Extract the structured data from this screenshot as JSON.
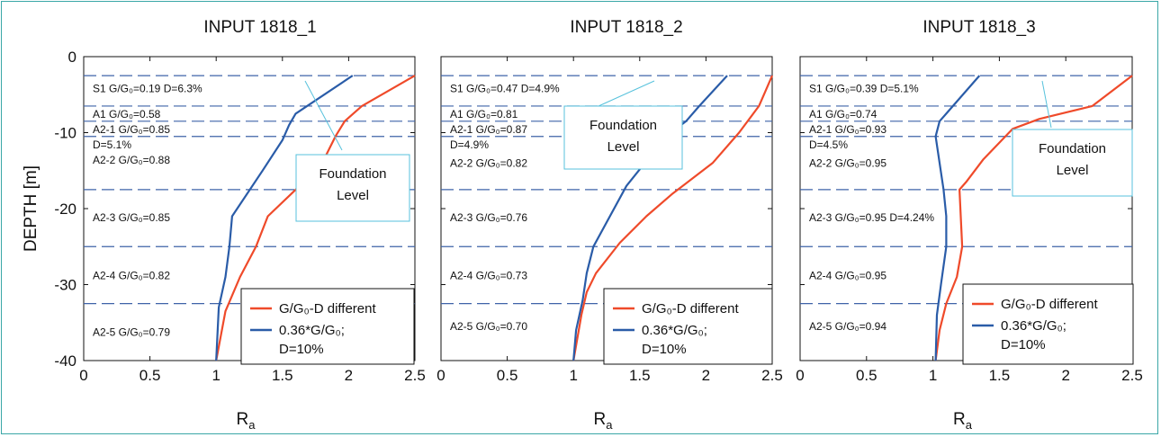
{
  "figure": {
    "ylabel": "DEPTH [m]",
    "xlabel": "R",
    "xlabel_sub": "a"
  },
  "colors": {
    "red_series": "#ef4a2a",
    "blue_series": "#2a5ca8",
    "layer_lines": "#3f63a8",
    "callout_border": "#57c2dc",
    "frame": "#3aa7a7"
  },
  "chart_data": [
    {
      "type": "line",
      "title": "INPUT 1818_1",
      "xlim": [
        0,
        2.5
      ],
      "ylim": [
        -40,
        0
      ],
      "xticks": [
        "0",
        "0.5",
        "1",
        "1.5",
        "2",
        "2.5"
      ],
      "yticks": [
        "0",
        "-10",
        "-20",
        "-30",
        "-40"
      ],
      "layer_boundaries": [
        -2.5,
        -6.5,
        -8.5,
        -10.5,
        -17.5,
        -25,
        -32.5
      ],
      "layer_labels": [
        {
          "text": "S1 G/G₀=0.19 D=6.3%",
          "depth": -4.2
        },
        {
          "text": "A1 G/G₀=0.58",
          "depth": -7.6
        },
        {
          "text": "A2-1 G/G₀=0.85",
          "depth": -9.6
        },
        {
          "text": "D=5.1%",
          "depth": -11.6
        },
        {
          "text": "A2-2 G/G₀=0.88",
          "depth": -13.6
        },
        {
          "text": "A2-3 G/G₀=0.85",
          "depth": -21.2
        },
        {
          "text": "A2-4 G/G₀=0.82",
          "depth": -28.8
        },
        {
          "text": "A2-5 G/G₀=0.79",
          "depth": -36.3
        }
      ],
      "callout": {
        "lines": [
          "Foundation",
          "Level"
        ]
      },
      "series": [
        {
          "name": "G/G₀-D different",
          "color": "#ef4a2a",
          "x": [
            2.5,
            2.1,
            1.97,
            1.9,
            1.8,
            1.6,
            1.39,
            1.3,
            1.18,
            1.07,
            1.0
          ],
          "y": [
            -2.5,
            -6.5,
            -8.5,
            -10.5,
            -14.0,
            -17.5,
            -21.0,
            -25.0,
            -29.0,
            -33.5,
            -40.0
          ]
        },
        {
          "name": "0.36*G/G₀;",
          "name2": "D=10%",
          "color": "#2a5ca8",
          "x": [
            2.03,
            1.6,
            1.55,
            1.5,
            1.35,
            1.12,
            1.1,
            1.07,
            1.02,
            1.0
          ],
          "y": [
            -2.5,
            -7.5,
            -9.0,
            -11.0,
            -15.0,
            -21.0,
            -25.0,
            -29.0,
            -33.0,
            -40.0
          ]
        }
      ],
      "legend": {
        "placement": "bottom-right"
      }
    },
    {
      "type": "line",
      "title": "INPUT 1818_2",
      "xlim": [
        0,
        2.5
      ],
      "ylim": [
        -40,
        0
      ],
      "xticks": [
        "0",
        "0.5",
        "1",
        "1.5",
        "2",
        "2.5"
      ],
      "yticks": [],
      "layer_boundaries": [
        -2.5,
        -6.5,
        -8.5,
        -10.5,
        -17.5,
        -25,
        -32.5
      ],
      "layer_labels": [
        {
          "text": "S1 G/G₀=0.47 D=4.9%",
          "depth": -4.2
        },
        {
          "text": "A1 G/G₀=0.81",
          "depth": -7.6
        },
        {
          "text": "A2-1 G/G₀=0.87",
          "depth": -9.6
        },
        {
          "text": "D=4.9%",
          "depth": -11.6
        },
        {
          "text": "A2-2 G/G₀=0.82",
          "depth": -14.0
        },
        {
          "text": "A2-3 G/G₀=0.76",
          "depth": -21.2
        },
        {
          "text": "A2-4 G/G₀=0.73",
          "depth": -28.8
        },
        {
          "text": "A2-5 G/G₀=0.70",
          "depth": -35.5
        }
      ],
      "callout": {
        "lines": [
          "Foundation",
          "Level"
        ]
      },
      "series": [
        {
          "name": "G/G₀-D different",
          "color": "#ef4a2a",
          "x": [
            2.5,
            2.4,
            2.25,
            2.05,
            1.75,
            1.55,
            1.35,
            1.17,
            1.1,
            1.06,
            1.0
          ],
          "y": [
            -2.5,
            -6.5,
            -10.0,
            -14.0,
            -18.0,
            -21.0,
            -24.5,
            -28.5,
            -31.0,
            -34.0,
            -40.0
          ]
        },
        {
          "name": "0.36*G/G₀;",
          "name2": "D=10%",
          "color": "#2a5ca8",
          "x": [
            2.16,
            1.95,
            1.85,
            1.7,
            1.4,
            1.15,
            1.1,
            1.07,
            1.02,
            1.0
          ],
          "y": [
            -2.5,
            -6.5,
            -8.5,
            -10.5,
            -17.0,
            -25.0,
            -28.5,
            -32.0,
            -36.0,
            -40.0
          ]
        }
      ],
      "legend": {
        "placement": "bottom-right"
      }
    },
    {
      "type": "line",
      "title": "INPUT 1818_3",
      "xlim": [
        0,
        2.5
      ],
      "ylim": [
        -40,
        0
      ],
      "xticks": [
        "0",
        "0.5",
        "1",
        "1.5",
        "2",
        "2.5"
      ],
      "yticks": [],
      "layer_boundaries": [
        -2.5,
        -6.5,
        -8.5,
        -10.5,
        -17.5,
        -25,
        -32.5
      ],
      "layer_labels": [
        {
          "text": "S1 G/G₀=0.39 D=5.1%",
          "depth": -4.2
        },
        {
          "text": "A1 G/G₀=0.74",
          "depth": -7.6
        },
        {
          "text": "A2-1 G/G₀=0.93",
          "depth": -9.6
        },
        {
          "text": "D=4.5%",
          "depth": -11.6
        },
        {
          "text": "A2-2 G/G₀=0.95",
          "depth": -14.0
        },
        {
          "text": "A2-3 G/G₀=0.95 D=4.24%",
          "depth": -21.2
        },
        {
          "text": "A2-4 G/G₀=0.95",
          "depth": -28.8
        },
        {
          "text": "A2-5 G/G₀=0.94",
          "depth": -35.5
        }
      ],
      "callout": {
        "lines": [
          "Foundation",
          "Level"
        ]
      },
      "series": [
        {
          "name": "G/G₀-D different",
          "color": "#ef4a2a",
          "x": [
            2.5,
            2.2,
            1.8,
            1.6,
            1.38,
            1.25,
            1.2,
            1.22,
            1.18,
            1.1,
            1.05,
            1.02
          ],
          "y": [
            -2.5,
            -6.5,
            -8.2,
            -9.5,
            -13.5,
            -16.5,
            -17.5,
            -25.0,
            -29.0,
            -32.5,
            -36.0,
            -40.0
          ]
        },
        {
          "name": "0.36*G/G₀;",
          "name2": "D=10%",
          "color": "#2a5ca8",
          "x": [
            1.35,
            1.1,
            1.05,
            1.02,
            1.05,
            1.08,
            1.1,
            1.1,
            1.06,
            1.03,
            1.02
          ],
          "y": [
            -2.5,
            -7.5,
            -8.5,
            -10.5,
            -14.0,
            -17.5,
            -21.0,
            -25.0,
            -30.0,
            -34.0,
            -40.0
          ]
        }
      ],
      "legend": {
        "placement": "bottom-right"
      }
    }
  ]
}
